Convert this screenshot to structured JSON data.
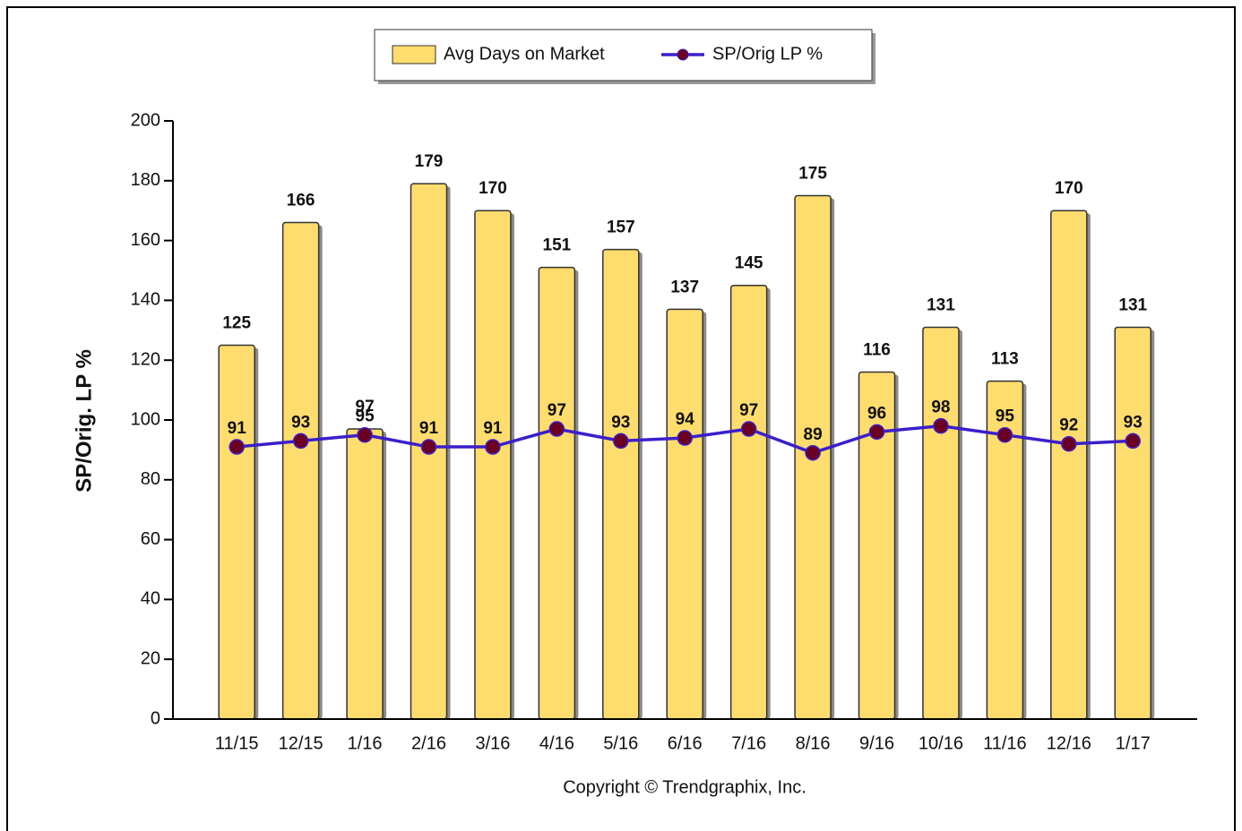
{
  "chart_data": {
    "type": "bar",
    "y_label": "SP/Orig. LP %",
    "footer": "Copyright © Trendgraphix, Inc.",
    "categories": [
      "11/15",
      "12/15",
      "1/16",
      "2/16",
      "3/16",
      "4/16",
      "5/16",
      "6/16",
      "7/16",
      "8/16",
      "9/16",
      "10/16",
      "11/16",
      "12/16",
      "1/17"
    ],
    "series": [
      {
        "name": "Avg Days on Market",
        "type": "bar",
        "color": "#ffdc6e",
        "values": [
          125,
          166,
          97,
          179,
          170,
          151,
          157,
          137,
          145,
          175,
          116,
          131,
          113,
          170,
          131
        ]
      },
      {
        "name": "SP/Orig LP %",
        "type": "line",
        "color": "#3a1fcc",
        "marker_color": "#6b0023",
        "values": [
          91,
          93,
          95,
          91,
          91,
          97,
          93,
          94,
          97,
          89,
          96,
          98,
          95,
          92,
          93
        ]
      }
    ],
    "ylim": [
      0,
      200
    ],
    "yticks": [
      0,
      20,
      40,
      60,
      80,
      100,
      120,
      140,
      160,
      180,
      200
    ]
  }
}
